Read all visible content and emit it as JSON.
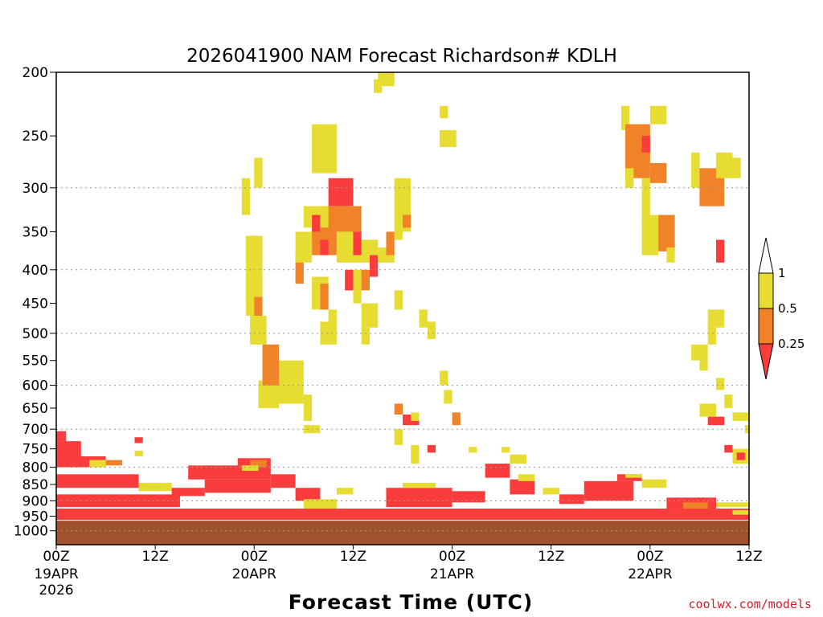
{
  "chart_data": {
    "type": "heatmap",
    "title": "2026041900 NAM Forecast Richardson# KDLH",
    "xlabel": "Forecast Time (UTC)",
    "ylabel": "",
    "x_axis": {
      "range_hours": [
        0,
        84
      ],
      "ticks": [
        {
          "hour": 0,
          "label": "00Z",
          "date": "19APR",
          "year": "2026"
        },
        {
          "hour": 12,
          "label": "12Z"
        },
        {
          "hour": 24,
          "label": "00Z",
          "date": "20APR"
        },
        {
          "hour": 36,
          "label": "12Z"
        },
        {
          "hour": 48,
          "label": "00Z",
          "date": "21APR"
        },
        {
          "hour": 60,
          "label": "12Z"
        },
        {
          "hour": 72,
          "label": "00Z",
          "date": "22APR"
        },
        {
          "hour": 84,
          "label": "12Z"
        }
      ]
    },
    "y_axis": {
      "units": "hPa",
      "range": [
        1050,
        200
      ],
      "scale": "log-pressure",
      "ticks": [
        200,
        250,
        300,
        350,
        400,
        450,
        500,
        550,
        600,
        650,
        700,
        750,
        800,
        850,
        900,
        950,
        1000
      ],
      "gridlines": [
        300,
        400,
        500,
        600,
        700,
        800,
        900,
        1000
      ]
    },
    "colorbar": {
      "levels": [
        {
          "label": "1",
          "color": "#ffffff"
        },
        {
          "label": "0.5",
          "color": "#e6dc32"
        },
        {
          "label": "0.25",
          "color": "#f08228"
        },
        {
          "label": "",
          "color": "#fa3c3c"
        }
      ]
    },
    "colors": {
      "weak": "#e6dc32",
      "mid": "#f08228",
      "low": "#fa3c3c",
      "ground": "#a0522d"
    },
    "ground_level_hPa": 965,
    "cells": [
      {
        "t0": 0,
        "t1": 1.2,
        "p0": 705,
        "p1": 730,
        "c": "low"
      },
      {
        "t0": 0,
        "t1": 3,
        "p0": 730,
        "p1": 770,
        "c": "low"
      },
      {
        "t0": 0,
        "t1": 6,
        "p0": 770,
        "p1": 800,
        "c": "low"
      },
      {
        "t0": 4,
        "t1": 6,
        "p0": 780,
        "p1": 800,
        "c": "weak"
      },
      {
        "t0": 6,
        "t1": 8,
        "p0": 780,
        "p1": 795,
        "c": "mid"
      },
      {
        "t0": 9.5,
        "t1": 10.5,
        "p0": 720,
        "p1": 735,
        "c": "low"
      },
      {
        "t0": 9.5,
        "t1": 10.5,
        "p0": 755,
        "p1": 770,
        "c": "weak"
      },
      {
        "t0": 0,
        "t1": 10,
        "p0": 820,
        "p1": 860,
        "c": "low"
      },
      {
        "t0": 0,
        "t1": 15,
        "p0": 880,
        "p1": 920,
        "c": "low"
      },
      {
        "t0": 0,
        "t1": 84,
        "p0": 925,
        "p1": 962,
        "c": "low"
      },
      {
        "t0": 10,
        "t1": 14,
        "p0": 845,
        "p1": 870,
        "c": "weak"
      },
      {
        "t0": 14,
        "t1": 18,
        "p0": 860,
        "p1": 885,
        "c": "low"
      },
      {
        "t0": 16,
        "t1": 26,
        "p0": 795,
        "p1": 835,
        "c": "low"
      },
      {
        "t0": 18,
        "t1": 26,
        "p0": 835,
        "p1": 875,
        "c": "low"
      },
      {
        "t0": 22,
        "t1": 26,
        "p0": 775,
        "p1": 795,
        "c": "low"
      },
      {
        "t0": 23.5,
        "t1": 25.5,
        "p0": 780,
        "p1": 800,
        "c": "mid"
      },
      {
        "t0": 22.5,
        "t1": 24.5,
        "p0": 795,
        "p1": 810,
        "c": "weak"
      },
      {
        "t0": 26,
        "t1": 29,
        "p0": 820,
        "p1": 860,
        "c": "low"
      },
      {
        "t0": 29,
        "t1": 32,
        "p0": 860,
        "p1": 900,
        "c": "low"
      },
      {
        "t0": 30,
        "t1": 34,
        "p0": 895,
        "p1": 925,
        "c": "weak"
      },
      {
        "t0": 34,
        "t1": 36,
        "p0": 860,
        "p1": 880,
        "c": "weak"
      },
      {
        "t0": 40,
        "t1": 48,
        "p0": 860,
        "p1": 920,
        "c": "low"
      },
      {
        "t0": 42,
        "t1": 46,
        "p0": 845,
        "p1": 860,
        "c": "weak"
      },
      {
        "t0": 48,
        "t1": 52,
        "p0": 870,
        "p1": 905,
        "c": "low"
      },
      {
        "t0": 52,
        "t1": 55,
        "p0": 790,
        "p1": 830,
        "c": "low"
      },
      {
        "t0": 55,
        "t1": 58,
        "p0": 835,
        "p1": 880,
        "c": "low"
      },
      {
        "t0": 56,
        "t1": 58,
        "p0": 820,
        "p1": 840,
        "c": "weak"
      },
      {
        "t0": 59,
        "t1": 61,
        "p0": 860,
        "p1": 880,
        "c": "weak"
      },
      {
        "t0": 61,
        "t1": 64,
        "p0": 880,
        "p1": 910,
        "c": "low"
      },
      {
        "t0": 64,
        "t1": 70,
        "p0": 840,
        "p1": 900,
        "c": "low"
      },
      {
        "t0": 68,
        "t1": 71,
        "p0": 820,
        "p1": 840,
        "c": "low"
      },
      {
        "t0": 69,
        "t1": 71,
        "p0": 820,
        "p1": 830,
        "c": "weak"
      },
      {
        "t0": 71,
        "t1": 74,
        "p0": 835,
        "p1": 860,
        "c": "weak"
      },
      {
        "t0": 74,
        "t1": 80,
        "p0": 890,
        "p1": 925,
        "c": "low"
      },
      {
        "t0": 76,
        "t1": 79,
        "p0": 905,
        "p1": 925,
        "c": "mid"
      },
      {
        "t0": 80,
        "t1": 84,
        "p0": 905,
        "p1": 920,
        "c": "weak"
      },
      {
        "t0": 82,
        "t1": 84,
        "p0": 930,
        "p1": 945,
        "c": "weak"
      },
      {
        "t0": 22.5,
        "t1": 23.5,
        "p0": 290,
        "p1": 330,
        "c": "weak"
      },
      {
        "t0": 24,
        "t1": 25,
        "p0": 270,
        "p1": 300,
        "c": "weak"
      },
      {
        "t0": 23,
        "t1": 25,
        "p0": 355,
        "p1": 470,
        "c": "weak"
      },
      {
        "t0": 24,
        "t1": 25,
        "p0": 440,
        "p1": 520,
        "c": "mid"
      },
      {
        "t0": 23.5,
        "t1": 25.5,
        "p0": 470,
        "p1": 520,
        "c": "weak"
      },
      {
        "t0": 25,
        "t1": 27,
        "p0": 520,
        "p1": 590,
        "c": "mid"
      },
      {
        "t0": 24.5,
        "t1": 27,
        "p0": 590,
        "p1": 650,
        "c": "weak"
      },
      {
        "t0": 27,
        "t1": 30,
        "p0": 550,
        "p1": 640,
        "c": "weak"
      },
      {
        "t0": 30,
        "t1": 31,
        "p0": 620,
        "p1": 680,
        "c": "weak"
      },
      {
        "t0": 30,
        "t1": 32,
        "p0": 690,
        "p1": 710,
        "c": "weak"
      },
      {
        "t0": 25,
        "t1": 27,
        "p0": 590,
        "p1": 600,
        "c": "mid"
      },
      {
        "t0": 31,
        "t1": 34,
        "p0": 240,
        "p1": 285,
        "c": "weak"
      },
      {
        "t0": 33,
        "t1": 36,
        "p0": 290,
        "p1": 320,
        "c": "low"
      },
      {
        "t0": 32,
        "t1": 37,
        "p0": 320,
        "p1": 350,
        "c": "mid"
      },
      {
        "t0": 30,
        "t1": 33,
        "p0": 320,
        "p1": 345,
        "c": "weak"
      },
      {
        "t0": 31,
        "t1": 32,
        "p0": 330,
        "p1": 360,
        "c": "low"
      },
      {
        "t0": 31,
        "t1": 34,
        "p0": 350,
        "p1": 380,
        "c": "mid"
      },
      {
        "t0": 32,
        "t1": 33,
        "p0": 360,
        "p1": 380,
        "c": "low"
      },
      {
        "t0": 34,
        "t1": 37,
        "p0": 350,
        "p1": 390,
        "c": "weak"
      },
      {
        "t0": 36,
        "t1": 37,
        "p0": 350,
        "p1": 380,
        "c": "low"
      },
      {
        "t0": 37,
        "t1": 39,
        "p0": 360,
        "p1": 390,
        "c": "weak"
      },
      {
        "t0": 38,
        "t1": 39,
        "p0": 380,
        "p1": 410,
        "c": "low"
      },
      {
        "t0": 36,
        "t1": 38,
        "p0": 400,
        "p1": 430,
        "c": "weak"
      },
      {
        "t0": 37,
        "t1": 38,
        "p0": 400,
        "p1": 430,
        "c": "mid"
      },
      {
        "t0": 35,
        "t1": 36,
        "p0": 400,
        "p1": 430,
        "c": "low"
      },
      {
        "t0": 31,
        "t1": 33,
        "p0": 410,
        "p1": 460,
        "c": "weak"
      },
      {
        "t0": 32,
        "t1": 33,
        "p0": 420,
        "p1": 460,
        "c": "mid"
      },
      {
        "t0": 29,
        "t1": 30,
        "p0": 380,
        "p1": 420,
        "c": "mid"
      },
      {
        "t0": 29,
        "t1": 31,
        "p0": 350,
        "p1": 390,
        "c": "weak"
      },
      {
        "t0": 33,
        "t1": 34,
        "p0": 460,
        "p1": 480,
        "c": "weak"
      },
      {
        "t0": 32,
        "t1": 34,
        "p0": 480,
        "p1": 520,
        "c": "weak"
      },
      {
        "t0": 36,
        "t1": 37,
        "p0": 430,
        "p1": 450,
        "c": "weak"
      },
      {
        "t0": 37,
        "t1": 39,
        "p0": 450,
        "p1": 490,
        "c": "weak"
      },
      {
        "t0": 37,
        "t1": 38,
        "p0": 490,
        "p1": 520,
        "c": "weak"
      },
      {
        "t0": 39,
        "t1": 41,
        "p0": 370,
        "p1": 390,
        "c": "weak"
      },
      {
        "t0": 40,
        "t1": 41,
        "p0": 350,
        "p1": 380,
        "c": "mid"
      },
      {
        "t0": 41,
        "t1": 42,
        "p0": 330,
        "p1": 360,
        "c": "weak"
      },
      {
        "t0": 41,
        "t1": 43,
        "p0": 290,
        "p1": 350,
        "c": "weak"
      },
      {
        "t0": 42,
        "t1": 43,
        "p0": 330,
        "p1": 345,
        "c": "mid"
      },
      {
        "t0": 39,
        "t1": 41,
        "p0": 200,
        "p1": 210,
        "c": "weak"
      },
      {
        "t0": 38.5,
        "t1": 39.5,
        "p0": 205,
        "p1": 215,
        "c": "weak"
      },
      {
        "t0": 41,
        "t1": 42,
        "p0": 430,
        "p1": 460,
        "c": "weak"
      },
      {
        "t0": 44,
        "t1": 45,
        "p0": 460,
        "p1": 490,
        "c": "weak"
      },
      {
        "t0": 45,
        "t1": 46,
        "p0": 480,
        "p1": 510,
        "c": "weak"
      },
      {
        "t0": 46.5,
        "t1": 47.5,
        "p0": 225,
        "p1": 235,
        "c": "weak"
      },
      {
        "t0": 46.5,
        "t1": 48.5,
        "p0": 245,
        "p1": 260,
        "c": "weak"
      },
      {
        "t0": 46.5,
        "t1": 47.5,
        "p0": 570,
        "p1": 600,
        "c": "weak"
      },
      {
        "t0": 47,
        "t1": 48,
        "p0": 610,
        "p1": 640,
        "c": "weak"
      },
      {
        "t0": 41,
        "t1": 42,
        "p0": 640,
        "p1": 665,
        "c": "mid"
      },
      {
        "t0": 42,
        "t1": 44,
        "p0": 665,
        "p1": 690,
        "c": "low"
      },
      {
        "t0": 43,
        "t1": 44,
        "p0": 660,
        "p1": 680,
        "c": "weak"
      },
      {
        "t0": 41,
        "t1": 42,
        "p0": 700,
        "p1": 740,
        "c": "weak"
      },
      {
        "t0": 43,
        "t1": 44,
        "p0": 740,
        "p1": 790,
        "c": "weak"
      },
      {
        "t0": 45,
        "t1": 46,
        "p0": 740,
        "p1": 760,
        "c": "low"
      },
      {
        "t0": 48,
        "t1": 49,
        "p0": 660,
        "p1": 690,
        "c": "mid"
      },
      {
        "t0": 50,
        "t1": 51,
        "p0": 745,
        "p1": 760,
        "c": "weak"
      },
      {
        "t0": 54,
        "t1": 55,
        "p0": 745,
        "p1": 760,
        "c": "weak"
      },
      {
        "t0": 55,
        "t1": 57,
        "p0": 765,
        "p1": 790,
        "c": "weak"
      },
      {
        "t0": 68.5,
        "t1": 69.5,
        "p0": 225,
        "p1": 245,
        "c": "weak"
      },
      {
        "t0": 69,
        "t1": 72,
        "p0": 240,
        "p1": 290,
        "c": "mid"
      },
      {
        "t0": 71,
        "t1": 72,
        "p0": 250,
        "p1": 265,
        "c": "low"
      },
      {
        "t0": 69,
        "t1": 70,
        "p0": 280,
        "p1": 300,
        "c": "weak"
      },
      {
        "t0": 72,
        "t1": 74,
        "p0": 225,
        "p1": 240,
        "c": "weak"
      },
      {
        "t0": 71,
        "t1": 72,
        "p0": 290,
        "p1": 340,
        "c": "weak"
      },
      {
        "t0": 72,
        "t1": 74,
        "p0": 275,
        "p1": 295,
        "c": "mid"
      },
      {
        "t0": 71,
        "t1": 73,
        "p0": 330,
        "p1": 380,
        "c": "weak"
      },
      {
        "t0": 73,
        "t1": 75,
        "p0": 330,
        "p1": 375,
        "c": "mid"
      },
      {
        "t0": 74,
        "t1": 75,
        "p0": 370,
        "p1": 390,
        "c": "weak"
      },
      {
        "t0": 77,
        "t1": 78,
        "p0": 265,
        "p1": 300,
        "c": "weak"
      },
      {
        "t0": 78,
        "t1": 81,
        "p0": 280,
        "p1": 320,
        "c": "mid"
      },
      {
        "t0": 80,
        "t1": 82,
        "p0": 265,
        "p1": 290,
        "c": "weak"
      },
      {
        "t0": 82,
        "t1": 83,
        "p0": 270,
        "p1": 290,
        "c": "weak"
      },
      {
        "t0": 80,
        "t1": 81,
        "p0": 360,
        "p1": 390,
        "c": "low"
      },
      {
        "t0": 79,
        "t1": 80,
        "p0": 480,
        "p1": 520,
        "c": "weak"
      },
      {
        "t0": 79,
        "t1": 81,
        "p0": 460,
        "p1": 490,
        "c": "weak"
      },
      {
        "t0": 77,
        "t1": 79,
        "p0": 520,
        "p1": 550,
        "c": "weak"
      },
      {
        "t0": 78,
        "t1": 79,
        "p0": 550,
        "p1": 570,
        "c": "weak"
      },
      {
        "t0": 80,
        "t1": 81,
        "p0": 585,
        "p1": 610,
        "c": "weak"
      },
      {
        "t0": 81,
        "t1": 82,
        "p0": 620,
        "p1": 650,
        "c": "weak"
      },
      {
        "t0": 78,
        "t1": 80,
        "p0": 640,
        "p1": 670,
        "c": "weak"
      },
      {
        "t0": 79,
        "t1": 81,
        "p0": 670,
        "p1": 690,
        "c": "low"
      },
      {
        "t0": 82,
        "t1": 84,
        "p0": 660,
        "p1": 680,
        "c": "weak"
      },
      {
        "t0": 83.5,
        "t1": 84,
        "p0": 690,
        "p1": 710,
        "c": "weak"
      },
      {
        "t0": 81,
        "t1": 82,
        "p0": 740,
        "p1": 760,
        "c": "low"
      },
      {
        "t0": 82,
        "t1": 84,
        "p0": 750,
        "p1": 790,
        "c": "weak"
      },
      {
        "t0": 82.5,
        "t1": 83.5,
        "p0": 760,
        "p1": 780,
        "c": "low"
      }
    ]
  },
  "credit": "coolwx.com/models",
  "credit_color": "#d0202a"
}
